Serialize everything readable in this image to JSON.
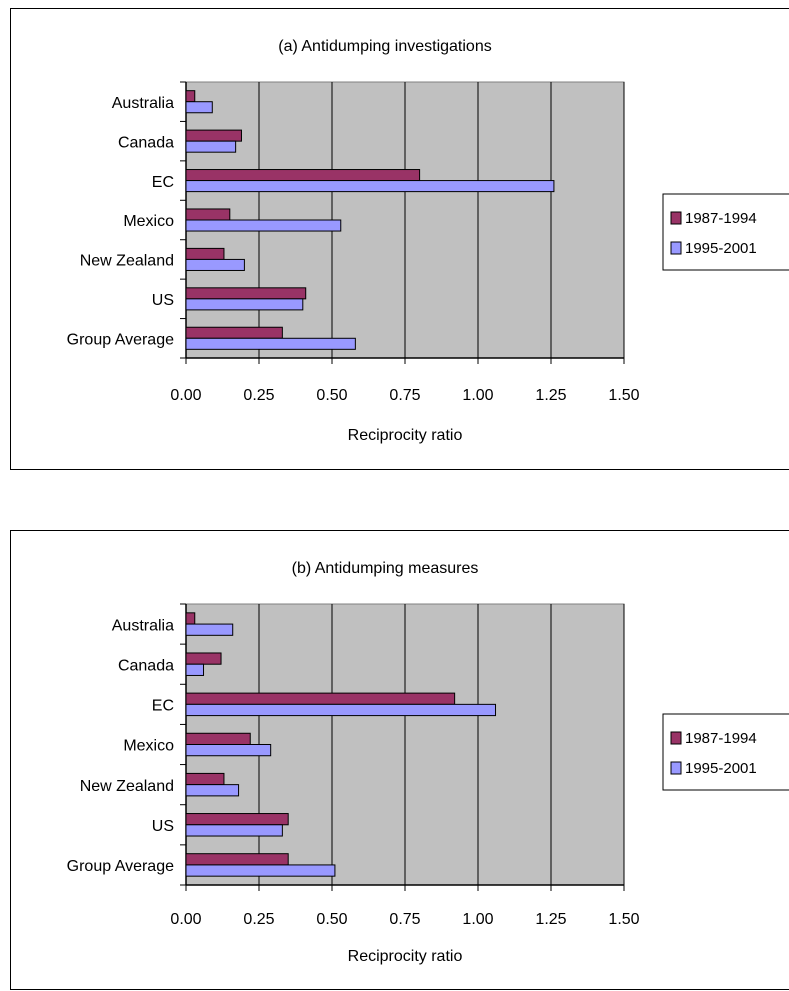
{
  "chart_data": [
    {
      "type": "bar",
      "orientation": "horizontal",
      "title": "(a) Antidumping investigations",
      "xlabel": "Reciprocity ratio",
      "ylabel": "",
      "xlim": [
        0,
        1.5
      ],
      "xticks": [
        "0.00",
        "0.25",
        "0.50",
        "0.75",
        "1.00",
        "1.25",
        "1.50"
      ],
      "grid": true,
      "legend_position": "right",
      "categories": [
        "Australia",
        "Canada",
        "EC",
        "Mexico",
        "New Zealand",
        "US",
        "Group Average"
      ],
      "series": [
        {
          "name": "1987-1994",
          "color": "#993366",
          "values": [
            0.03,
            0.19,
            0.8,
            0.15,
            0.13,
            0.41,
            0.33
          ]
        },
        {
          "name": "1995-2001",
          "color": "#9999ff",
          "values": [
            0.09,
            0.17,
            1.26,
            0.53,
            0.2,
            0.4,
            0.58
          ]
        }
      ]
    },
    {
      "type": "bar",
      "orientation": "horizontal",
      "title": "(b) Antidumping measures",
      "xlabel": "Reciprocity ratio",
      "ylabel": "",
      "xlim": [
        0,
        1.5
      ],
      "xticks": [
        "0.00",
        "0.25",
        "0.50",
        "0.75",
        "1.00",
        "1.25",
        "1.50"
      ],
      "grid": true,
      "legend_position": "right",
      "categories": [
        "Australia",
        "Canada",
        "EC",
        "Mexico",
        "New Zealand",
        "US",
        "Group Average"
      ],
      "series": [
        {
          "name": "1987-1994",
          "color": "#993366",
          "values": [
            0.03,
            0.12,
            0.92,
            0.22,
            0.13,
            0.35,
            0.35
          ]
        },
        {
          "name": "1995-2001",
          "color": "#9999ff",
          "values": [
            0.16,
            0.06,
            1.06,
            0.29,
            0.18,
            0.33,
            0.51
          ]
        }
      ]
    }
  ],
  "style": {
    "plot_background": "#c0c0c0",
    "gridline_color": "#000000"
  }
}
